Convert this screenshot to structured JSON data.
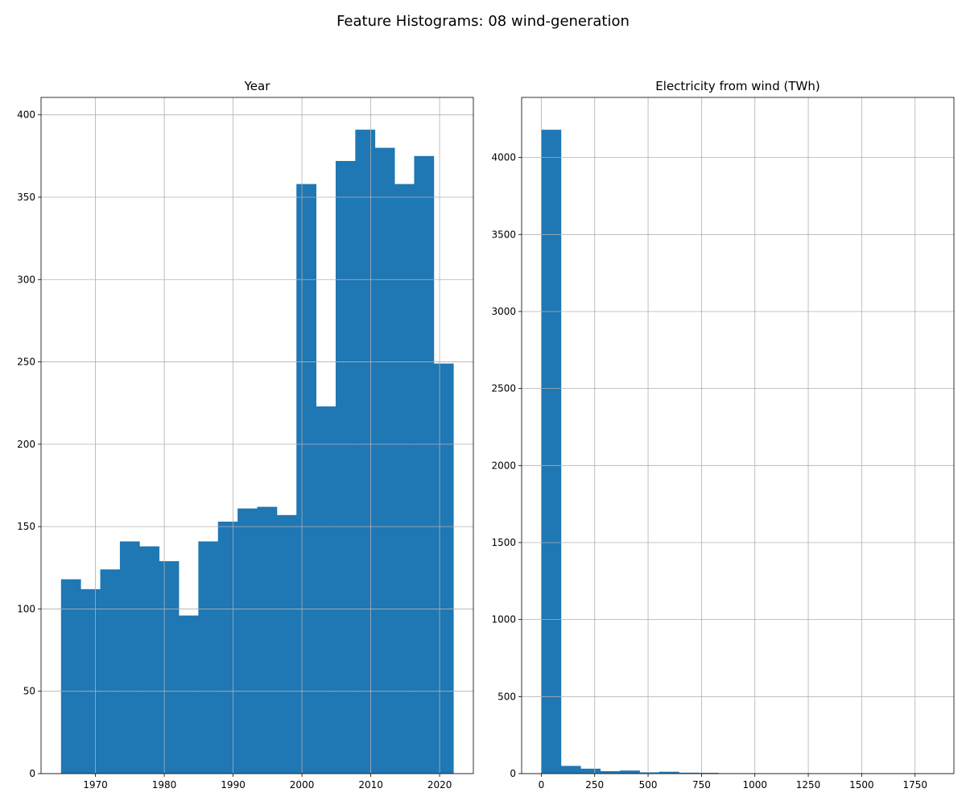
{
  "figure": {
    "title": "Feature Histograms: 08 wind-generation"
  },
  "chart_data": [
    {
      "type": "bar",
      "title": "Year",
      "xlabel": "",
      "ylabel": "",
      "grid": true,
      "color": "#1f77b4",
      "xlim": [
        1962.1,
        2024.9
      ],
      "ylim": [
        0,
        410.6
      ],
      "xticks": [
        1970,
        1980,
        1990,
        2000,
        2010,
        2020
      ],
      "yticks": [
        0,
        50,
        100,
        150,
        200,
        250,
        300,
        350,
        400
      ],
      "bin_edges": [
        1965,
        1967.85,
        1970.7,
        1973.55,
        1976.4,
        1979.25,
        1982.1,
        1984.95,
        1987.8,
        1990.65,
        1993.5,
        1996.35,
        1999.2,
        2002.05,
        2004.9,
        2007.75,
        2010.6,
        2013.45,
        2016.3,
        2019.15,
        2022
      ],
      "values": [
        118,
        112,
        124,
        141,
        138,
        129,
        96,
        141,
        153,
        161,
        162,
        157,
        358,
        223,
        372,
        391,
        380,
        358,
        375,
        249
      ]
    },
    {
      "type": "bar",
      "title": "Electricity from wind (TWh)",
      "xlabel": "",
      "ylabel": "",
      "grid": true,
      "color": "#1f77b4",
      "xlim": [
        -92,
        1932
      ],
      "ylim": [
        0,
        4390
      ],
      "xticks": [
        0,
        250,
        500,
        750,
        1000,
        1250,
        1500,
        1750
      ],
      "yticks": [
        0,
        500,
        1000,
        1500,
        2000,
        2500,
        3000,
        3500,
        4000
      ],
      "bin_edges": [
        0,
        92,
        184,
        276,
        368,
        460,
        552,
        644,
        736,
        828,
        920,
        1012,
        1104,
        1196,
        1288,
        1380,
        1472,
        1564,
        1656,
        1748,
        1840
      ],
      "values": [
        4180,
        50,
        32,
        16,
        20,
        8,
        12,
        6,
        5,
        2,
        2,
        1,
        1,
        1,
        1,
        1,
        1,
        1,
        1,
        1
      ]
    }
  ]
}
